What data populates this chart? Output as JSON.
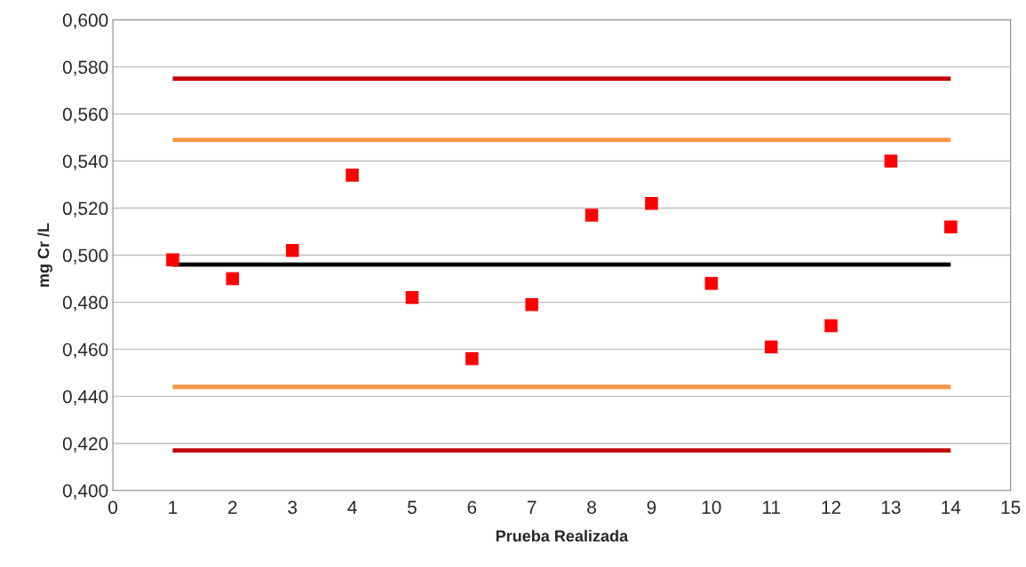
{
  "chart_data": {
    "type": "scatter",
    "xlabel": "Prueba Realizada",
    "ylabel": "mg Cr /L",
    "xlim": [
      0,
      15
    ],
    "xticks": [
      0,
      1,
      2,
      3,
      4,
      5,
      6,
      7,
      8,
      9,
      10,
      11,
      12,
      13,
      14,
      15
    ],
    "ylim": [
      0.4,
      0.6
    ],
    "yticks": [
      {
        "value": 0.4,
        "label": "0,400"
      },
      {
        "value": 0.42,
        "label": "0,420"
      },
      {
        "value": 0.44,
        "label": "0,440"
      },
      {
        "value": 0.46,
        "label": "0,460"
      },
      {
        "value": 0.48,
        "label": "0,480"
      },
      {
        "value": 0.5,
        "label": "0,500"
      },
      {
        "value": 0.52,
        "label": "0,520"
      },
      {
        "value": 0.54,
        "label": "0,540"
      },
      {
        "value": 0.56,
        "label": "0,560"
      },
      {
        "value": 0.58,
        "label": "0,580"
      },
      {
        "value": 0.6,
        "label": "0,600"
      }
    ],
    "grid": "y",
    "legend": false,
    "series": [
      {
        "type": "line",
        "color": "#c00000",
        "x": [
          1,
          14
        ],
        "values": [
          0.575,
          0.575
        ],
        "marker": "none"
      },
      {
        "type": "line",
        "color": "#f79646",
        "x": [
          1,
          14
        ],
        "values": [
          0.549,
          0.549
        ],
        "marker": "none"
      },
      {
        "type": "line",
        "color": "#000000",
        "x": [
          1,
          14
        ],
        "values": [
          0.496,
          0.496
        ],
        "marker": "none"
      },
      {
        "type": "line",
        "color": "#f79646",
        "x": [
          1,
          14
        ],
        "values": [
          0.444,
          0.444
        ],
        "marker": "none"
      },
      {
        "type": "line",
        "color": "#c00000",
        "x": [
          1,
          14
        ],
        "values": [
          0.417,
          0.417
        ],
        "marker": "none"
      },
      {
        "color": "#ff0000",
        "marker": "square",
        "x": [
          1,
          2,
          3,
          4,
          5,
          6,
          7,
          8,
          9,
          10,
          11,
          12,
          13,
          14
        ],
        "values": [
          0.498,
          0.49,
          0.502,
          0.534,
          0.482,
          0.456,
          0.479,
          0.517,
          0.522,
          0.488,
          0.461,
          0.47,
          0.54,
          0.512
        ]
      }
    ]
  }
}
